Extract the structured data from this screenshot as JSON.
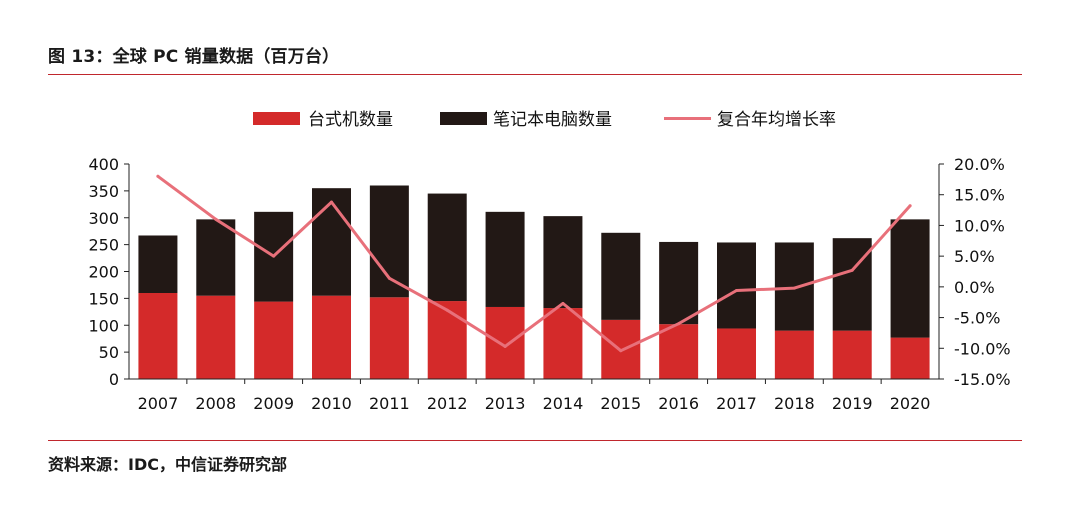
{
  "figure": {
    "title": "图 13：全球 PC 销量数据（百万台）",
    "source": "资料来源：IDC，中信证券研究部"
  },
  "colors": {
    "desktop": "#d42a2a",
    "laptop": "#221815",
    "growth": "#e8707a",
    "rule": "#c0272d",
    "axis": "#222222"
  },
  "chart_data": {
    "type": "bar",
    "stacked": true,
    "categories": [
      "2007",
      "2008",
      "2009",
      "2010",
      "2011",
      "2012",
      "2013",
      "2014",
      "2015",
      "2016",
      "2017",
      "2018",
      "2019",
      "2020"
    ],
    "series": [
      {
        "name": "台式机数量",
        "type": "bar",
        "axis": "left",
        "values": [
          160,
          155,
          144,
          155,
          152,
          145,
          134,
          132,
          110,
          102,
          94,
          90,
          90,
          77
        ]
      },
      {
        "name": "笔记本电脑数量",
        "type": "bar",
        "axis": "left",
        "values": [
          107,
          142,
          167,
          200,
          208,
          200,
          177,
          171,
          162,
          153,
          160,
          164,
          172,
          220
        ]
      },
      {
        "name": "复合年均增长率",
        "type": "line",
        "axis": "right",
        "values": [
          18.0,
          11.0,
          5.0,
          13.8,
          1.4,
          -3.8,
          -9.7,
          -2.7,
          -10.4,
          -6.0,
          -0.6,
          -0.2,
          2.7,
          13.2
        ]
      }
    ],
    "left_axis": {
      "min": 0,
      "max": 400,
      "ticks": [
        0,
        50,
        100,
        150,
        200,
        250,
        300,
        350,
        400
      ]
    },
    "right_axis": {
      "min": -15,
      "max": 20,
      "ticks": [
        {
          "value": 20,
          "label": "20.0%"
        },
        {
          "value": 15,
          "label": "15.0%"
        },
        {
          "value": 10,
          "label": "10.0%"
        },
        {
          "value": 5,
          "label": "5.0%"
        },
        {
          "value": 0,
          "label": "0.0%"
        },
        {
          "value": -5,
          "label": "-5.0%"
        },
        {
          "value": -10,
          "label": "-10.0%"
        },
        {
          "value": -15,
          "label": "-15.0%"
        }
      ]
    },
    "legend_position": "top-center",
    "grid": false
  }
}
